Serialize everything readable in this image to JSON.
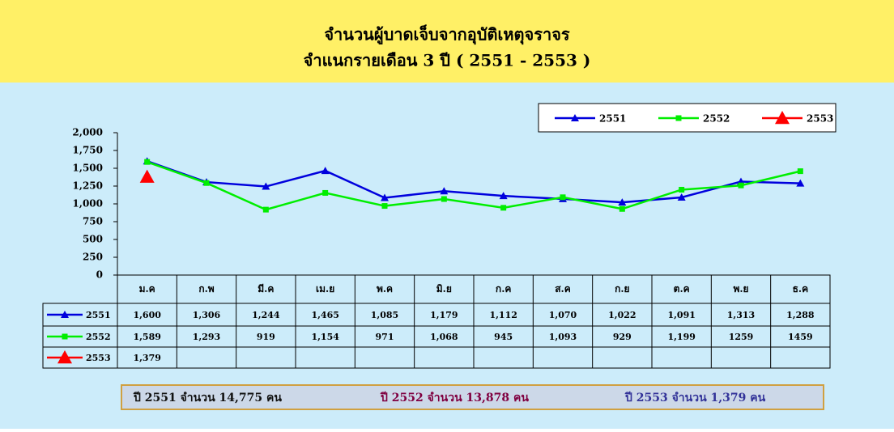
{
  "chart_data": {
    "type": "line",
    "title": "จำนวนผู้บาดเจ็บจากอุบัติเหตุจราจร",
    "subtitle": "จำแนกรายเดือน 3 ปี ( 2551 - 2553 )",
    "categories": [
      "ม.ค",
      "ก.พ",
      "มี.ค",
      "เม.ย",
      "พ.ค",
      "มิ.ย",
      "ก.ค",
      "ส.ค",
      "ก.ย",
      "ต.ค",
      "พ.ย",
      "ธ.ค"
    ],
    "series": [
      {
        "name": "2551",
        "color": "#0000dd",
        "marker": "triangle",
        "values": [
          1600,
          1306,
          1244,
          1465,
          1085,
          1179,
          1112,
          1070,
          1022,
          1091,
          1313,
          1288
        ],
        "value_labels": [
          "1,600",
          "1,306",
          "1,244",
          "1,465",
          "1,085",
          "1,179",
          "1,112",
          "1,070",
          "1,022",
          "1,091",
          "1,313",
          "1,288"
        ]
      },
      {
        "name": "2552",
        "color": "#00ee00",
        "marker": "square",
        "values": [
          1589,
          1293,
          919,
          1154,
          971,
          1068,
          945,
          1093,
          929,
          1199,
          1259,
          1459
        ],
        "value_labels": [
          "1,589",
          "1,293",
          "919",
          "1,154",
          "971",
          "1,068",
          "945",
          "1,093",
          "929",
          "1,199",
          "1259",
          "1459"
        ]
      },
      {
        "name": "2553",
        "color": "#ff0000",
        "marker": "big-triangle",
        "values": [
          1379,
          null,
          null,
          null,
          null,
          null,
          null,
          null,
          null,
          null,
          null,
          null
        ],
        "value_labels": [
          "1,379",
          null,
          null,
          null,
          null,
          null,
          null,
          null,
          null,
          null,
          null,
          null
        ]
      }
    ],
    "ylim": [
      0,
      2000
    ],
    "yticks": [
      0,
      250,
      500,
      750,
      {
        "value": 1000,
        "label": "1,000"
      },
      {
        "value": 1250,
        "label": "1,250"
      },
      {
        "value": 1500,
        "label": "1,500"
      },
      {
        "value": 1750,
        "label": "1,750"
      },
      {
        "value": 2000,
        "label": "2,000"
      }
    ],
    "grid": false,
    "legend": "top-right",
    "summary": [
      {
        "text": "ปี 2551  จำนวน  14,775  คน",
        "color": "#111111"
      },
      {
        "text": "ปี 2552  จำนวน  13,878  คน",
        "color": "#800040"
      },
      {
        "text": "ปี 2553  จำนวน  1,379  คน",
        "color": "#333399"
      }
    ]
  }
}
